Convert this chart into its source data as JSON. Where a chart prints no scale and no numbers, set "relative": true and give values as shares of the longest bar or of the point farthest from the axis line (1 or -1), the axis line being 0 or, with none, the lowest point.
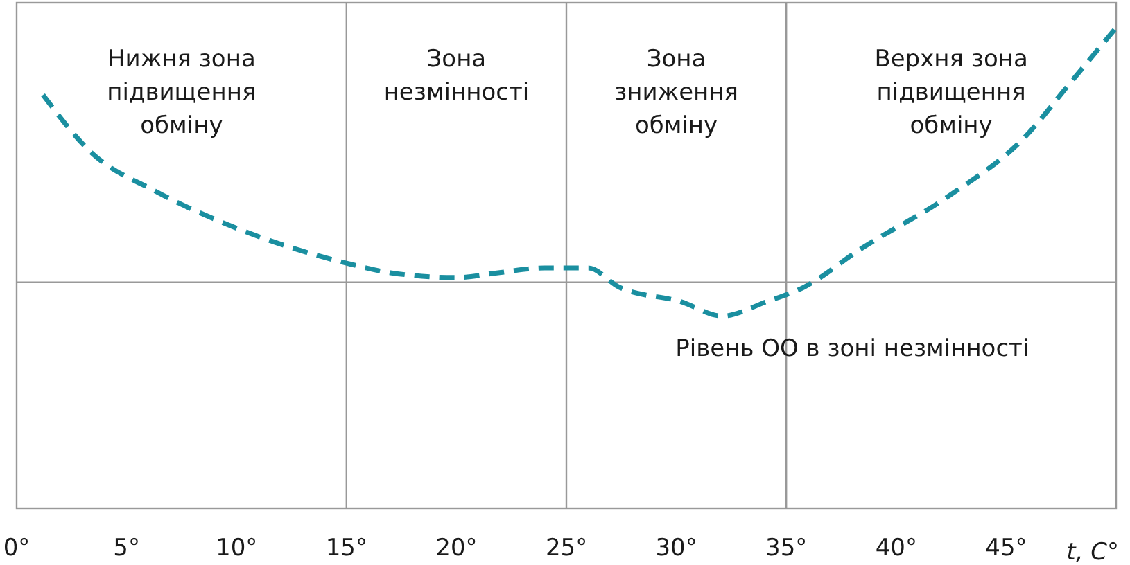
{
  "chart_data": {
    "type": "line",
    "relative": true,
    "xlabel": "t, C°",
    "xlim": [
      0,
      50
    ],
    "xticks": [
      {
        "value": 0,
        "label": "0°"
      },
      {
        "value": 5,
        "label": "5°"
      },
      {
        "value": 10,
        "label": "10°"
      },
      {
        "value": 15,
        "label": "15°"
      },
      {
        "value": 20,
        "label": "20°"
      },
      {
        "value": 25,
        "label": "25°"
      },
      {
        "value": 30,
        "label": "30°"
      },
      {
        "value": 35,
        "label": "35°"
      },
      {
        "value": 40,
        "label": "40°"
      },
      {
        "value": 45,
        "label": "45°"
      }
    ],
    "series": [
      {
        "color": "#1a8fa0",
        "line_style": "dashed",
        "x": [
          1.2,
          3.4,
          6.3,
          9.6,
          15,
          17,
          20,
          21.9,
          24,
          26,
          27.4,
          30.2,
          32.1,
          34.1,
          35.8,
          38.4,
          42.4,
          45.8,
          48,
          50
        ],
        "values": [
          0.86,
          0.74,
          0.66,
          0.59,
          0.51,
          0.49,
          0.48,
          0.49,
          0.5,
          0.5,
          0.46,
          0.43,
          0.4,
          0.43,
          0.46,
          0.54,
          0.65,
          0.77,
          0.89,
          1
        ]
      }
    ],
    "annotations": [
      "Нижня зона\nпідвищення\nобміну",
      "Зона\nнезмінності",
      "Зона\nзниження\nобміну",
      "Верхня зона\nпідвищення\nобміну"
    ],
    "ref_lines": [
      {
        "axis": "x",
        "value": 15,
        "color": "#999999"
      },
      {
        "axis": "x",
        "value": 25,
        "color": "#999999"
      },
      {
        "axis": "x",
        "value": 35,
        "color": "#999999"
      },
      {
        "axis": "y",
        "value": 0.47,
        "label": "Рівень ОО в зоні незмінності",
        "color": "#999999"
      }
    ]
  }
}
